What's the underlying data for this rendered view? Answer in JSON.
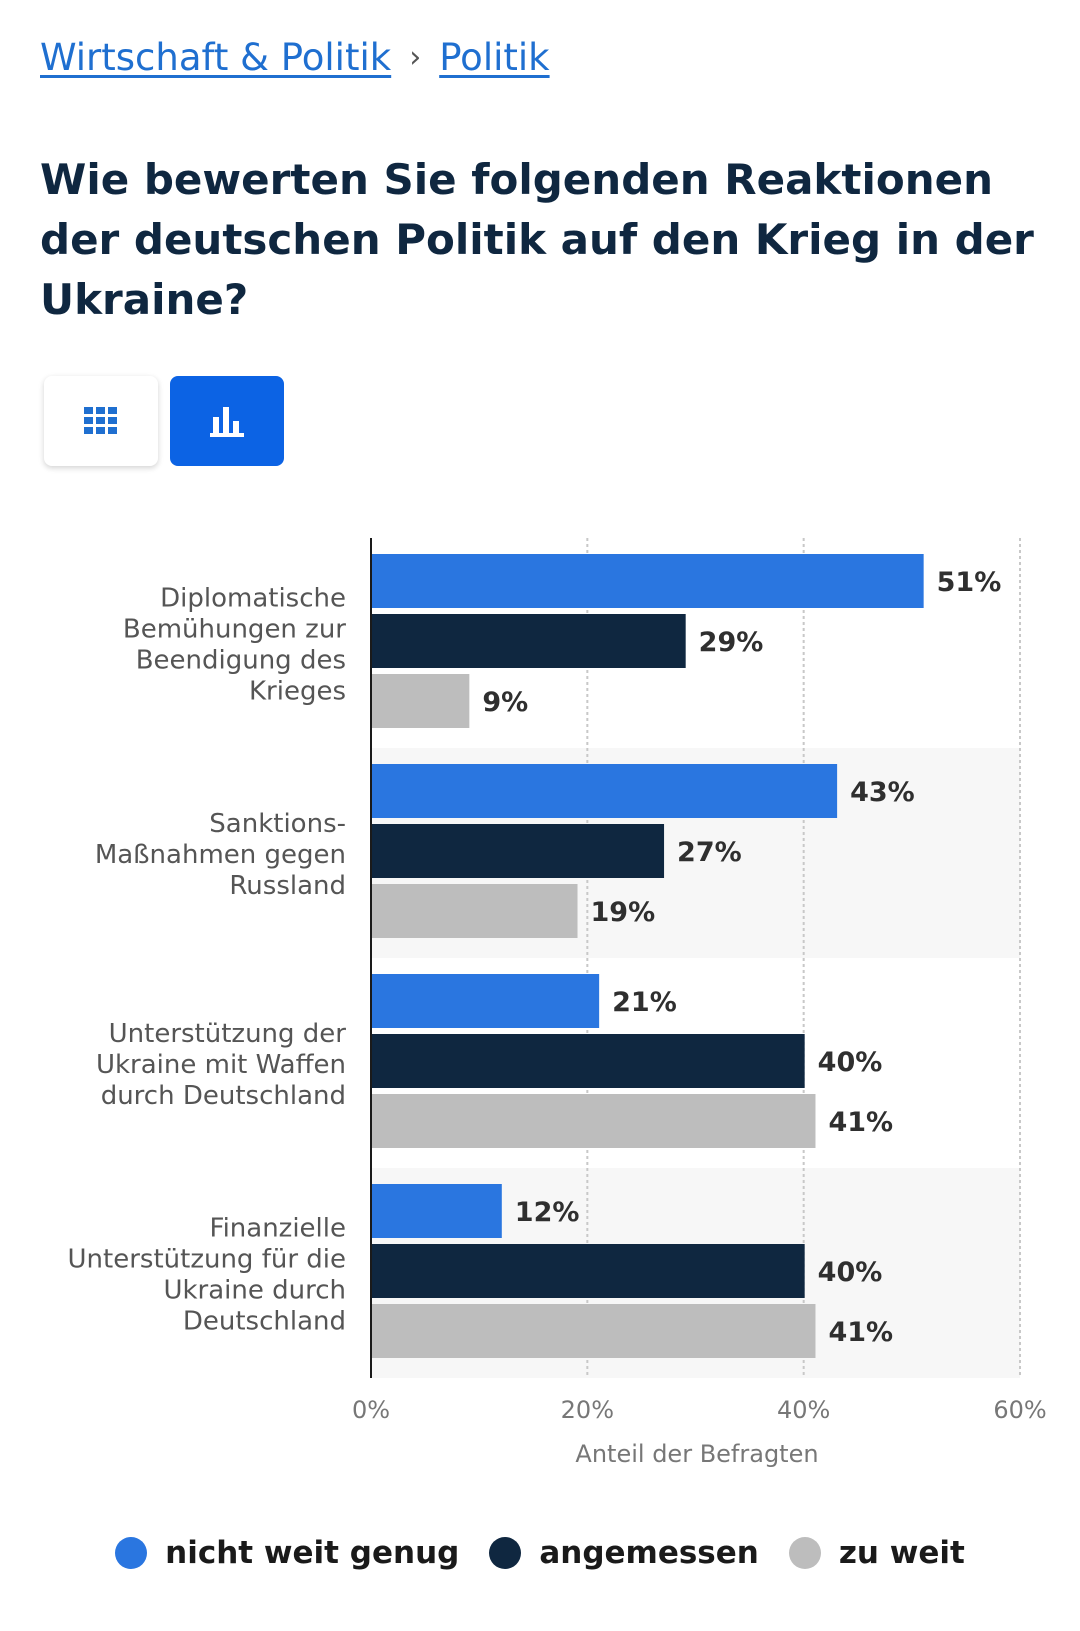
{
  "breadcrumb": {
    "items": [
      "Wirtschaft & Politik",
      "Politik"
    ],
    "separator": "›"
  },
  "view_toggle": {
    "table_icon": "grid-icon",
    "chart_icon": "bar-chart-icon",
    "active": "chart",
    "active_color": "#0c63e4"
  },
  "chart_data": {
    "type": "bar",
    "orientation": "horizontal",
    "title": "Wie bewerten Sie folgenden Reaktionen der deutschen Politik auf den Krieg in der Ukraine?",
    "categories": [
      "Diplomatische Bemühungen zur Beendigung des Krieges",
      "Sanktions- Maßnahmen gegen Russland",
      "Unterstützung der Ukraine mit Waffen durch Deutschland",
      "Finanzielle Unterstützung für die Ukraine durch Deutschland"
    ],
    "category_lines": [
      [
        "Diplomatische",
        "Bemühungen zur",
        "Beendigung des",
        "Krieges"
      ],
      [
        "Sanktions-",
        "Maßnahmen gegen",
        "Russland"
      ],
      [
        "Unterstützung der",
        "Ukraine mit Waffen",
        "durch Deutschland"
      ],
      [
        "Finanzielle",
        "Unterstützung für die",
        "Ukraine durch",
        "Deutschland"
      ]
    ],
    "series": [
      {
        "name": "nicht weit genug",
        "color": "#2a76e0",
        "values": [
          51,
          43,
          21,
          12
        ]
      },
      {
        "name": "angemessen",
        "color": "#0f2740",
        "values": [
          29,
          27,
          40,
          40
        ]
      },
      {
        "name": "zu weit",
        "color": "#bdbdbd",
        "values": [
          9,
          19,
          41,
          41
        ]
      }
    ],
    "value_suffix": "%",
    "xlim": [
      0,
      60
    ],
    "xticks": [
      0,
      20,
      40,
      60
    ],
    "xtick_labels": [
      "0%",
      "20%",
      "40%",
      "60%"
    ],
    "xlabel": "Anteil der Befragten",
    "ylabel": "",
    "grid": true,
    "legend_position": "bottom"
  }
}
